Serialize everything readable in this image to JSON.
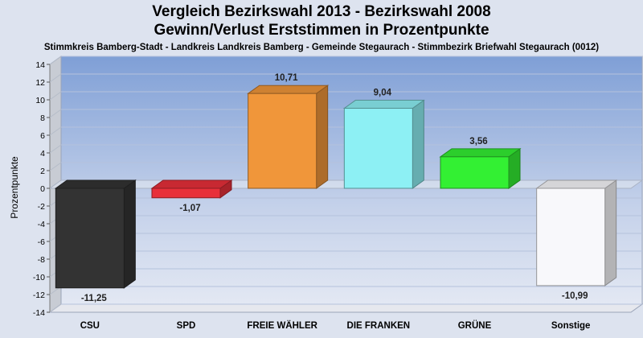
{
  "chart_data": {
    "type": "bar",
    "title": "Vergleich Bezirkswahl 2013 - Bezirkswahl 2008",
    "subtitle": "Gewinn/Verlust Erststimmen in Prozentpunkte",
    "caption": "Stimmkreis Bamberg-Stadt - Landkreis Landkreis Bamberg - Gemeinde Stegaurach - Stimmbezirk Briefwahl Stegaurach (0012)",
    "ylabel": "Prozentpunkte",
    "xlabel": "",
    "ylim": [
      -14,
      14
    ],
    "yticks": [
      14,
      12,
      10,
      8,
      6,
      4,
      2,
      0,
      -2,
      -4,
      -6,
      -8,
      -10,
      -12,
      -14
    ],
    "grid": true,
    "categories": [
      "CSU",
      "SPD",
      "FREIE WÄHLER",
      "DIE FRANKEN",
      "GRÜNE",
      "Sonstige"
    ],
    "values": [
      -11.25,
      -1.07,
      10.71,
      9.04,
      3.56,
      -10.99
    ],
    "value_labels": [
      "-11,25",
      "-1,07",
      "10,71",
      "9,04",
      "3,56",
      "-10,99"
    ],
    "colors": [
      "#333333",
      "#e8303a",
      "#f0963a",
      "#8df0f4",
      "#33f033",
      "#f8f8fb"
    ]
  }
}
